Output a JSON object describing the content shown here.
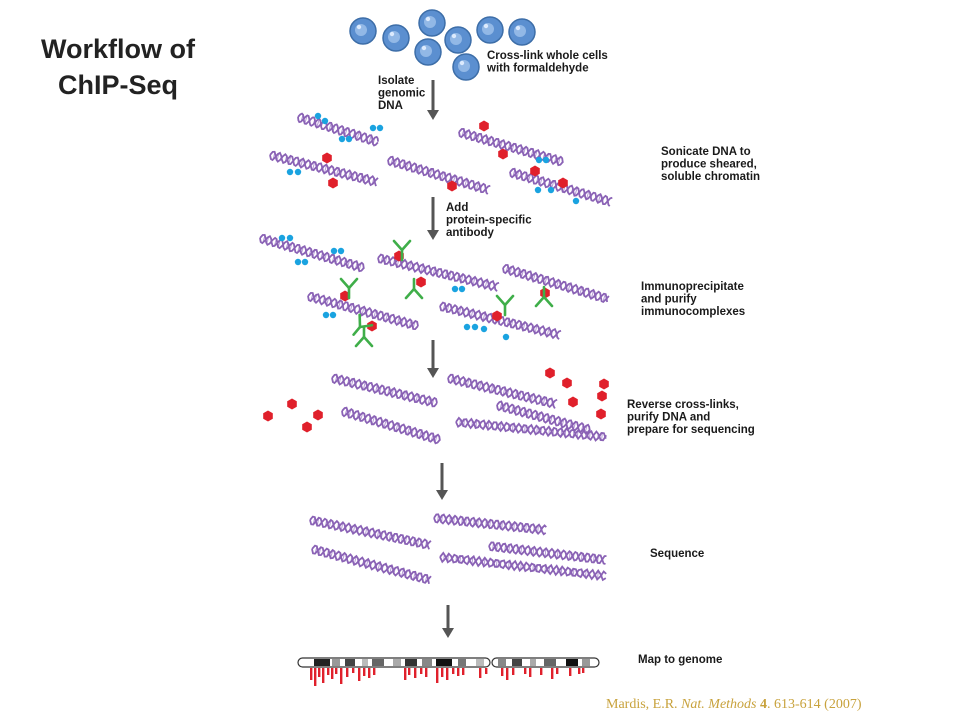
{
  "title": {
    "line1": "Workflow of",
    "line2": "ChIP-Seq"
  },
  "steps": [
    {
      "id": "crosslink",
      "label_lines": [
        "Cross-link whole cells",
        "with formaldehyde"
      ]
    },
    {
      "id": "isolate",
      "label_lines": [
        "Isolate",
        "genomic",
        "DNA"
      ]
    },
    {
      "id": "sonicate",
      "label_lines": [
        "Sonicate DNA to",
        "produce sheared,",
        "soluble chromatin"
      ]
    },
    {
      "id": "antibody",
      "label_lines": [
        "Add",
        "protein-specific",
        "antibody"
      ]
    },
    {
      "id": "immunoprecipitate",
      "label_lines": [
        "Immunoprecipitate",
        "and purify",
        "immunocomplexes"
      ]
    },
    {
      "id": "reverse",
      "label_lines": [
        "Reverse cross-links,",
        "purify DNA and",
        "prepare for sequencing"
      ]
    },
    {
      "id": "sequence",
      "label_lines": [
        "Sequence"
      ]
    },
    {
      "id": "map",
      "label_lines": [
        "Map to genome"
      ]
    }
  ],
  "citation": {
    "authors": "Mardis, E.R.",
    "journal": "Nat. Methods",
    "volume": "4",
    "pages": ". 613-614 (2007)"
  },
  "colors": {
    "dna_strand": "#8a62b5",
    "dna_rung": "#b79bd6",
    "protein_red": "#e0202b",
    "protein_blue": "#1aa3e0",
    "antibody_green": "#3fae49",
    "cell_fill": "#5b8fd0",
    "arrow": "#555555",
    "citation": "#c8a23c"
  },
  "icons": [
    "cell-icon",
    "dna-helix-icon",
    "protein-dot-icon",
    "antibody-icon",
    "down-arrow-icon",
    "chromosome-ideogram-icon"
  ]
}
